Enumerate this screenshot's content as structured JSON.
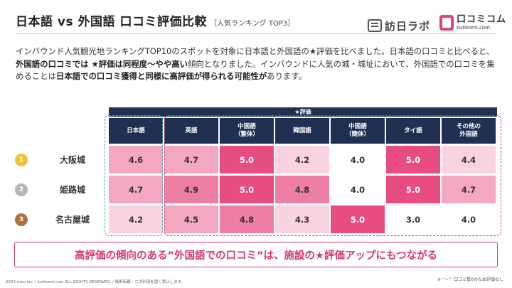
{
  "header": {
    "title": "日本語 vs 外国語 口コミ評価比較",
    "subtitle": "［人気ランキング TOP3］",
    "logo_houjin": "訪日ラボ",
    "logo_kutikomi": "口コミコム",
    "logo_kutikomi_domain": "kutikomi.com"
  },
  "intro": {
    "p1": "インバウンド人気観光地ランキングTOP10のスポットを対象に日本語と外国語の★評価を比べました。日本語の口コミと比べると、",
    "b1": "外国語の口コミでは ★評価は同程度〜やや高い",
    "p2": "傾向となりました。インバウンドに人気の城・城址において、外国語での口コミを集めることは",
    "b2": "日本語での口コミ獲得と同様に高評価が得られる可能性が",
    "p3": "あります。"
  },
  "table": {
    "group_header": "★評価",
    "columns": [
      "日本語",
      "英語",
      "中国語\n（繁体）",
      "韓国語",
      "中国語\n（簡体）",
      "タイ語",
      "その他の\n外国語"
    ],
    "rows": [
      {
        "rank": "1",
        "name": "大阪城",
        "values": [
          "4.6",
          "4.7",
          "5.0",
          "4.2",
          "4.0",
          "5.0",
          "4.4"
        ]
      },
      {
        "rank": "2",
        "name": "姫路城",
        "values": [
          "4.7",
          "4.9",
          "5.0",
          "4.8",
          "4.0",
          "5.0",
          "4.7"
        ]
      },
      {
        "rank": "3",
        "name": "名古屋城",
        "values": [
          "4.2",
          "4.5",
          "4.8",
          "4.3",
          "5.0",
          "3.0",
          "4.0"
        ]
      }
    ]
  },
  "colors": {
    "navy": "#203053",
    "accent": "#d23a6a",
    "teal": "#3aa5b8",
    "gold": "#f0c23a",
    "silver": "#b5b5b5",
    "bronze": "#b0703a"
  },
  "callout": "高評価の傾向のある”外国語での口コミ”は、施設の★評価アップにもつながる",
  "footer": {
    "copyright": "2024 mov inc. / kutikomi.com ALL RIGHTS RESERVED. / 無断転載・二次利用を固く禁止します。",
    "note": "※ “ー”: 口コミ数0のため評価なし"
  }
}
